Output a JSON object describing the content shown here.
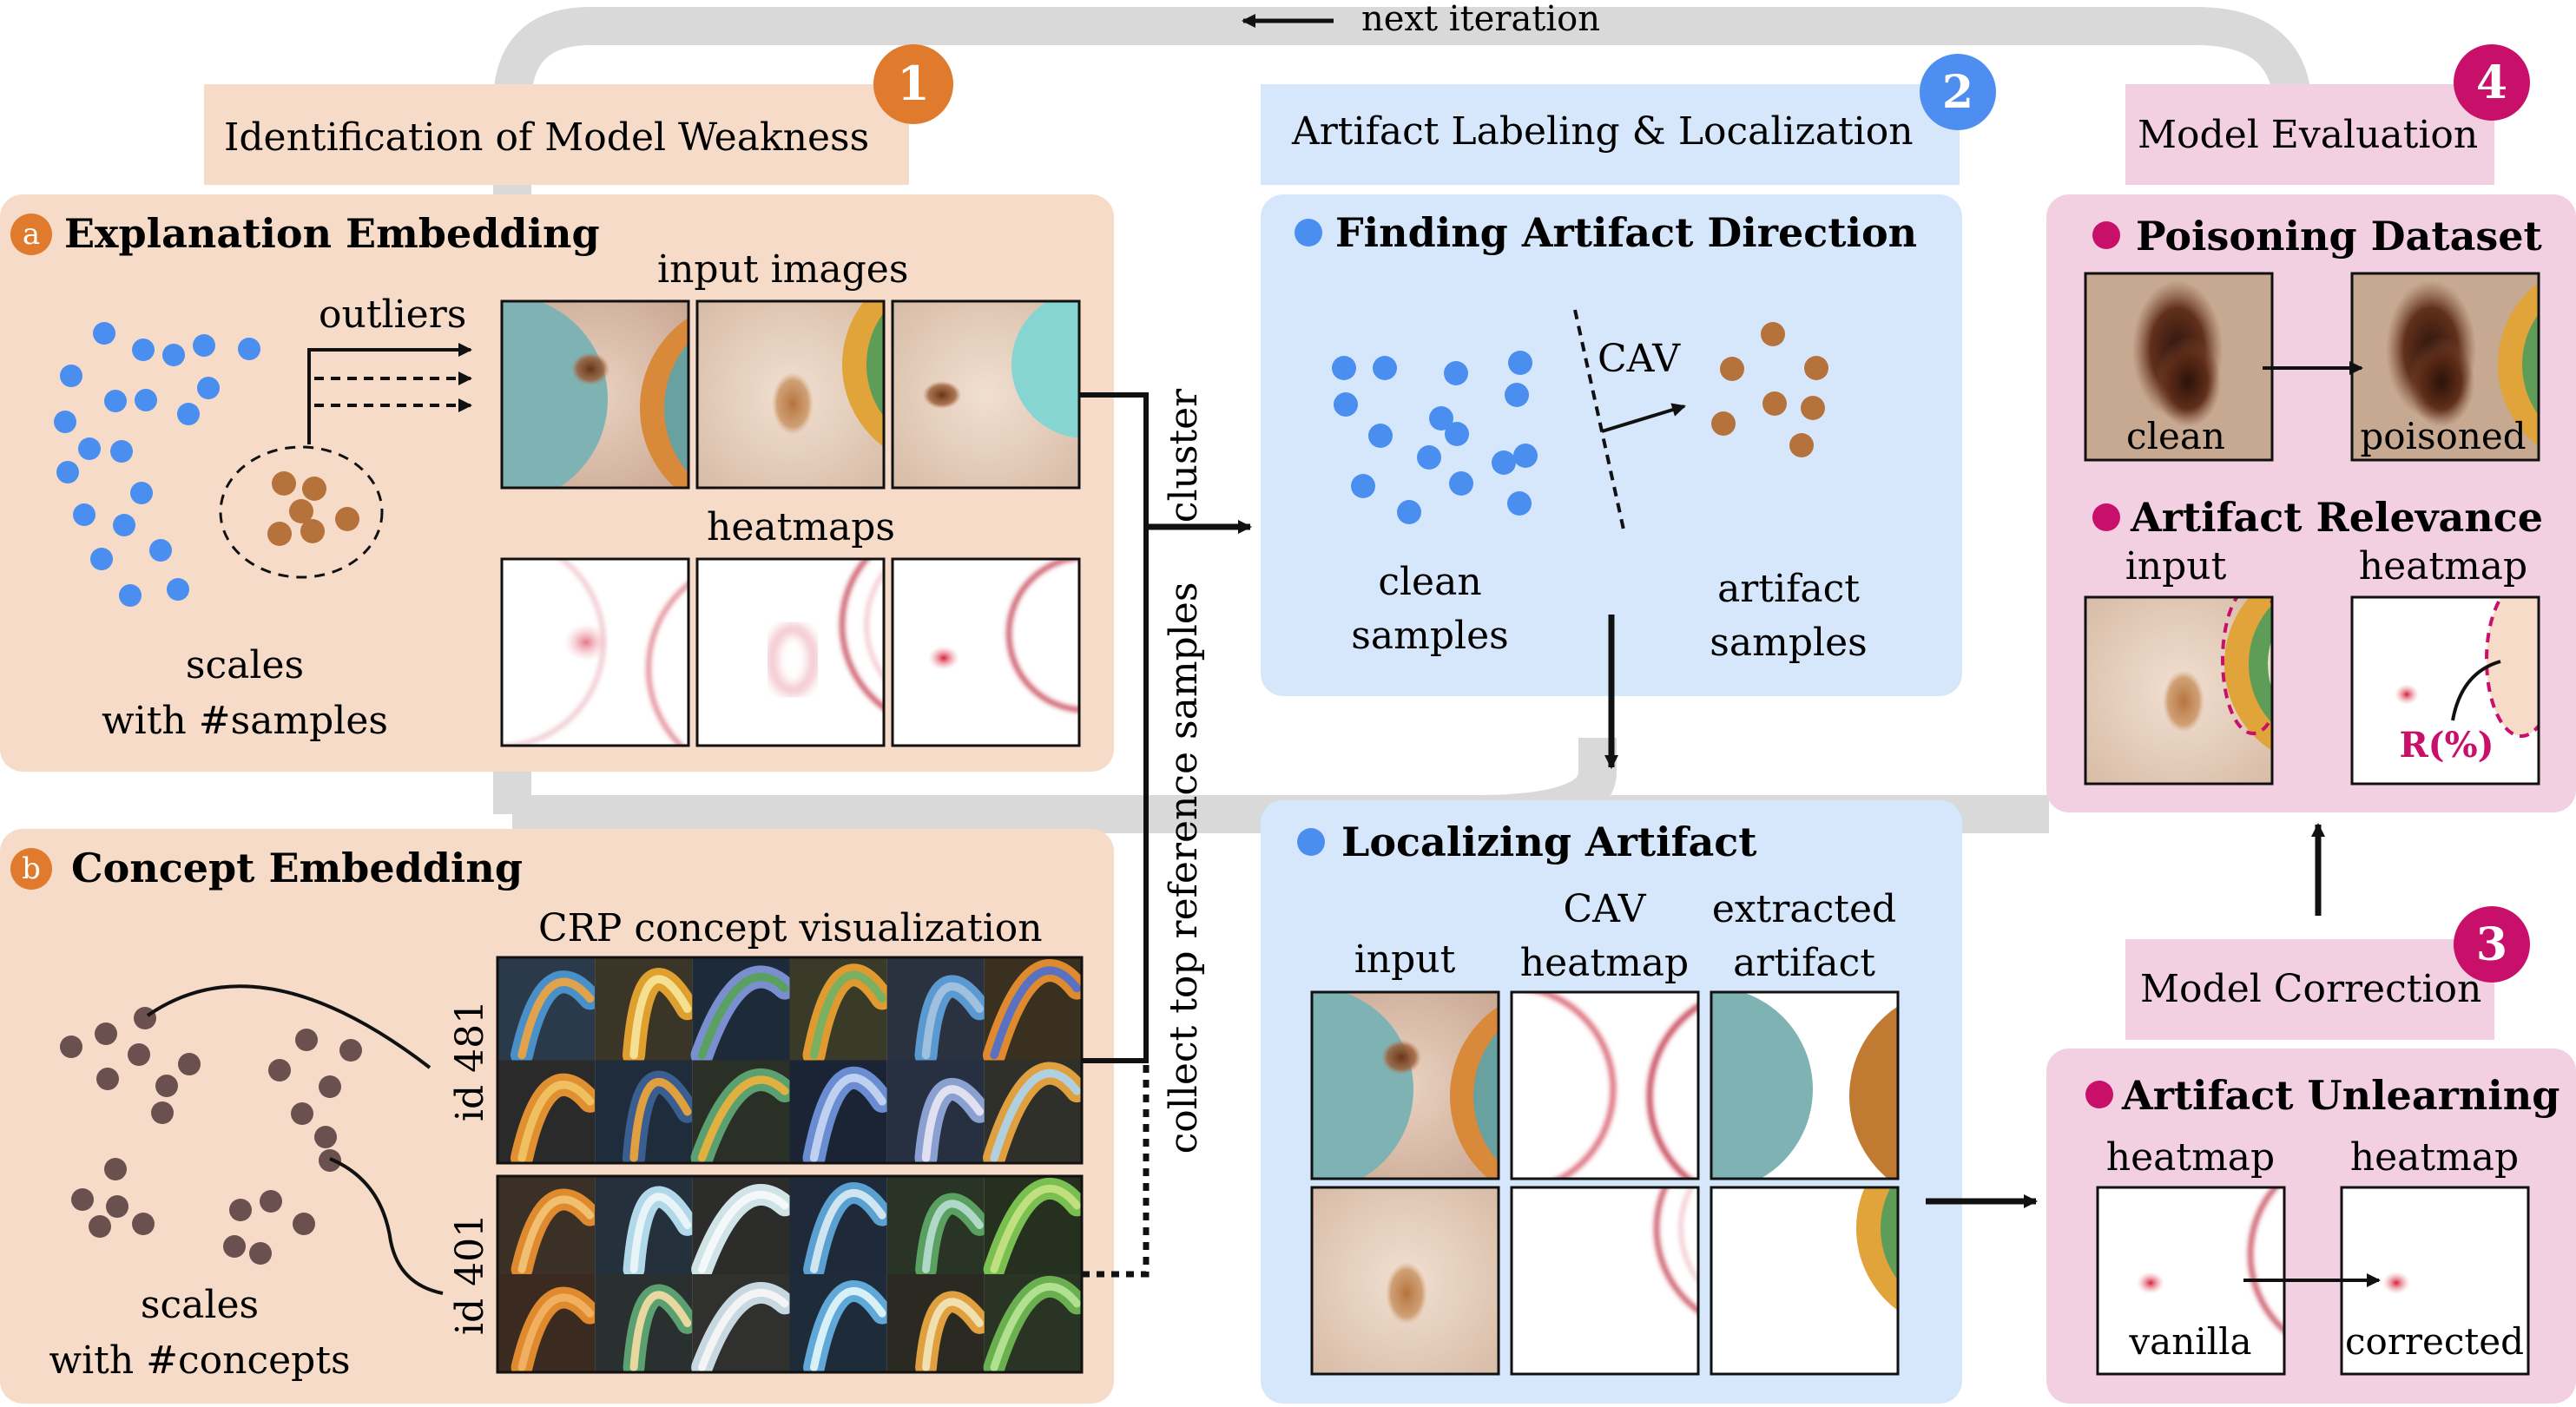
{
  "colors": {
    "orange_panel": "#f6dcc8",
    "blue_panel": "#d7e7fb",
    "pink_panel": "#f3cfe2",
    "loop_arrow": "#d9d9d9",
    "badge_orange": "#e07a2c",
    "badge_blue": "#4d8ef0",
    "badge_magenta": "#c8106a",
    "point_blue": "#4a8ef0",
    "point_brown": "#b5723a",
    "point_darkbrown": "#6b5050",
    "relevance_label": "#c8106a"
  },
  "loop": {
    "label": "next iteration"
  },
  "steps": {
    "step1": {
      "number": "1",
      "title": "Identification of  Model Weakness"
    },
    "step2": {
      "number": "2",
      "title": "Artifact Labeling & Localization"
    },
    "step3": {
      "number": "3",
      "title": "Model Correction"
    },
    "step4": {
      "number": "4",
      "title": "Model Evaluation"
    }
  },
  "panel_a": {
    "badge": "a",
    "title": "Explanation Embedding",
    "outliers": "outliers",
    "input_images": "input images",
    "heatmaps": "heatmaps",
    "caption_line1": "scales",
    "caption_line2": "with #samples"
  },
  "panel_b": {
    "badge": "b",
    "title": "Concept Embedding",
    "crp_title": "CRP concept visualization",
    "id_top": "id 481",
    "id_bottom": "id 401",
    "caption_line1": "scales",
    "caption_line2": "with #concepts"
  },
  "connectors": {
    "cluster": "cluster",
    "collect": "collect top reference samples"
  },
  "finding": {
    "title": "Finding Artifact Direction",
    "cav": "CAV",
    "clean_line1": "clean",
    "clean_line2": "samples",
    "artifact_line1": "artifact",
    "artifact_line2": "samples"
  },
  "localizing": {
    "title": "Localizing Artifact",
    "col1": "input",
    "col2_line1": "CAV",
    "col2_line2": "heatmap",
    "col3_line1": "extracted",
    "col3_line2": "artifact"
  },
  "poisoning": {
    "title": "Poisoning Dataset",
    "clean": "clean",
    "poisoned": "poisoned"
  },
  "relevance": {
    "title": "Artifact Relevance",
    "input": "input",
    "heatmap": "heatmap",
    "r_label": "R(%)"
  },
  "unlearning": {
    "title": "Artifact Unlearning",
    "heatmap_left": "heatmap",
    "heatmap_right": "heatmap",
    "vanilla": "vanilla",
    "corrected": "corrected"
  }
}
